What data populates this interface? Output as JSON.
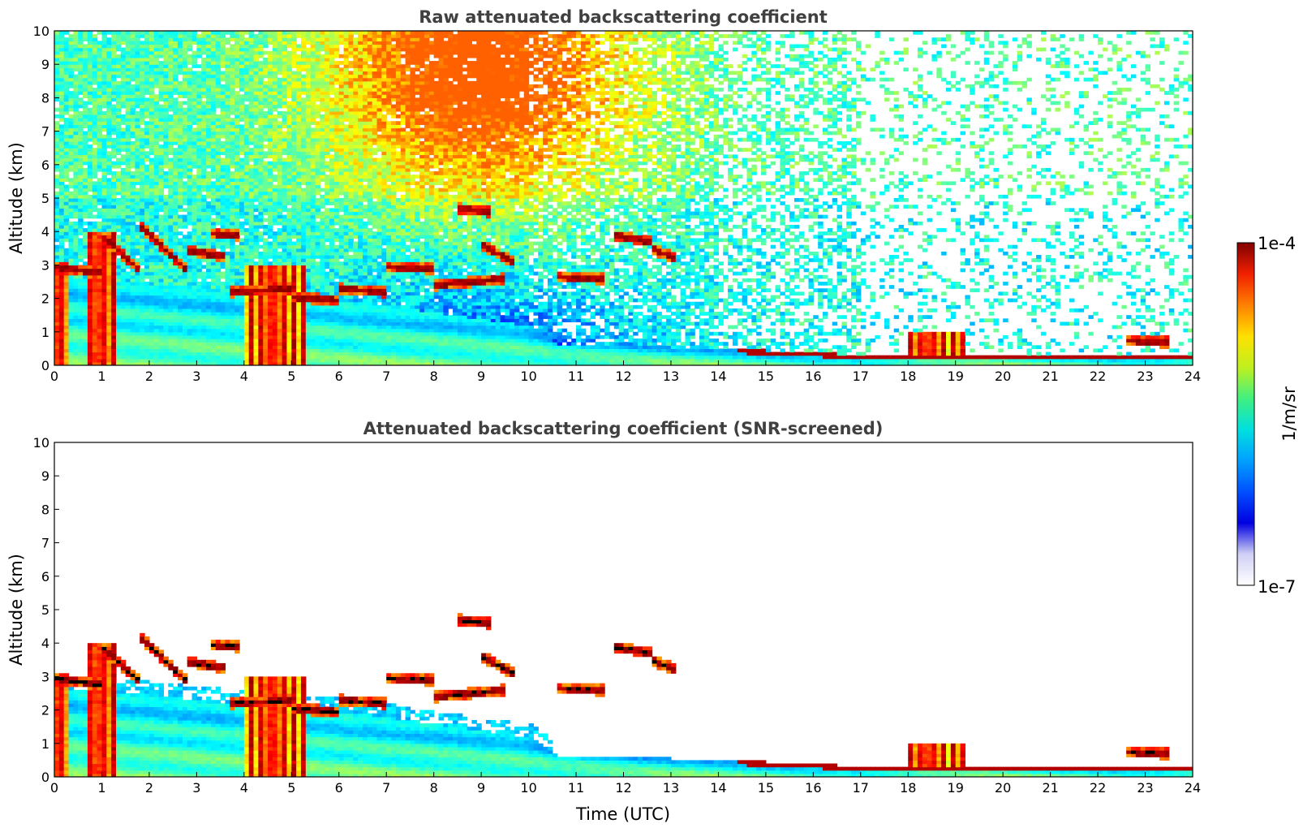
{
  "chart_data": [
    {
      "type": "heatmap",
      "title": "Raw attenuated backscattering coefficient",
      "xlabel": "",
      "ylabel": "Altitude (km)",
      "xlim": [
        0,
        24
      ],
      "ylim": [
        0,
        10
      ],
      "x_ticks": [
        "0",
        "1",
        "2",
        "3",
        "4",
        "5",
        "6",
        "7",
        "8",
        "9",
        "10",
        "11",
        "12",
        "13",
        "14",
        "15",
        "16",
        "17",
        "18",
        "19",
        "20",
        "21",
        "22",
        "23",
        "24"
      ],
      "y_ticks": [
        "0",
        "1",
        "2",
        "3",
        "4",
        "5",
        "6",
        "7",
        "8",
        "9",
        "10"
      ],
      "screened": false,
      "boundary_layer_top_km": [
        [
          0,
          2.6
        ],
        [
          1,
          2.6
        ],
        [
          3,
          2.3
        ],
        [
          6,
          2.0
        ],
        [
          10,
          1.2
        ],
        [
          10.6,
          0.65
        ],
        [
          13,
          0.55
        ],
        [
          15,
          0.45
        ],
        [
          17.5,
          0.28
        ],
        [
          18,
          0.35
        ],
        [
          20,
          0.3
        ],
        [
          24,
          0.3
        ]
      ],
      "cloud_layers": [
        {
          "x": [
            0.0,
            1.0
          ],
          "y": [
            2.95,
            2.75
          ]
        },
        {
          "x": [
            1.0,
            1.8
          ],
          "y": [
            3.9,
            2.85
          ]
        },
        {
          "x": [
            1.8,
            2.8
          ],
          "y": [
            4.2,
            2.85
          ]
        },
        {
          "x": [
            2.8,
            3.6
          ],
          "y": [
            3.45,
            3.25
          ]
        },
        {
          "x": [
            3.3,
            3.9
          ],
          "y": [
            3.95,
            3.9
          ]
        },
        {
          "x": [
            3.7,
            5.0
          ],
          "y": [
            2.2,
            2.3
          ]
        },
        {
          "x": [
            5.0,
            6.0
          ],
          "y": [
            2.05,
            1.95
          ]
        },
        {
          "x": [
            6.0,
            7.0
          ],
          "y": [
            2.3,
            2.2
          ]
        },
        {
          "x": [
            7.0,
            8.0
          ],
          "y": [
            2.95,
            2.9
          ]
        },
        {
          "x": [
            8.0,
            9.5
          ],
          "y": [
            2.4,
            2.6
          ]
        },
        {
          "x": [
            8.5,
            9.2
          ],
          "y": [
            4.7,
            4.6
          ]
        },
        {
          "x": [
            9.0,
            9.7
          ],
          "y": [
            3.6,
            3.1
          ]
        },
        {
          "x": [
            10.6,
            11.6
          ],
          "y": [
            2.65,
            2.6
          ]
        },
        {
          "x": [
            11.8,
            12.6
          ],
          "y": [
            3.9,
            3.7
          ]
        },
        {
          "x": [
            12.6,
            13.1
          ],
          "y": [
            3.5,
            3.2
          ]
        },
        {
          "x": [
            22.6,
            23.5
          ],
          "y": [
            0.75,
            0.7
          ]
        }
      ],
      "aerosol_plumes": [
        {
          "x": [
            0.0,
            0.3
          ],
          "y": [
            0.0,
            2.9
          ]
        },
        {
          "x": [
            0.7,
            1.3
          ],
          "y": [
            0.0,
            4.0
          ]
        },
        {
          "x": [
            4.0,
            5.3
          ],
          "y": [
            0.0,
            3.0
          ]
        },
        {
          "x": [
            18.0,
            19.2
          ],
          "y": [
            0.3,
            0.95
          ]
        }
      ]
    },
    {
      "type": "heatmap",
      "title": "Attenuated backscattering coefficient (SNR-screened)",
      "xlabel": "Time (UTC)",
      "ylabel": "Altitude (km)",
      "xlim": [
        0,
        24
      ],
      "ylim": [
        0,
        10
      ],
      "x_ticks": [
        "0",
        "1",
        "2",
        "3",
        "4",
        "5",
        "6",
        "7",
        "8",
        "9",
        "10",
        "11",
        "12",
        "13",
        "14",
        "15",
        "16",
        "17",
        "18",
        "19",
        "20",
        "21",
        "22",
        "23",
        "24"
      ],
      "y_ticks": [
        "0",
        "1",
        "2",
        "3",
        "4",
        "5",
        "6",
        "7",
        "8",
        "9",
        "10"
      ],
      "screened": true
    }
  ],
  "colorbar": {
    "label": "1/m/sr",
    "max_label": "1e-4",
    "min_label": "1e-7",
    "colormap": "jet",
    "stops": [
      "#ffffff",
      "#d0d0f5",
      "#0000e0",
      "#0050ff",
      "#00a0ff",
      "#00e0e0",
      "#40f080",
      "#c0f020",
      "#ffe000",
      "#ff8000",
      "#f02000",
      "#800000"
    ]
  }
}
